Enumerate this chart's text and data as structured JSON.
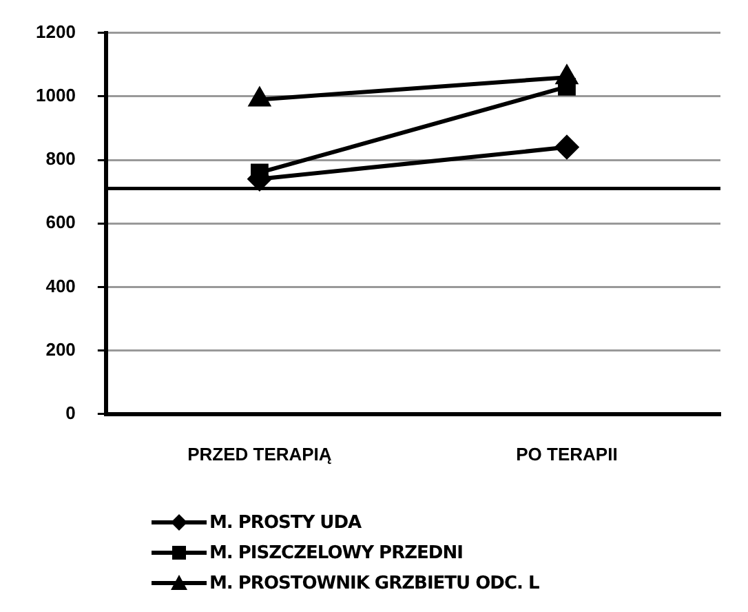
{
  "chart_data": {
    "type": "line",
    "categories": [
      "PRZED TERAPIĄ",
      "PO TERAPII"
    ],
    "series": [
      {
        "name": "M. PROSTY UDA",
        "color": "#000000",
        "marker": "diamond",
        "values": [
          740,
          840
        ]
      },
      {
        "name": "M. PISZCZELOWY PRZEDNI",
        "color": "#000000",
        "marker": "square",
        "values": [
          760,
          1030
        ]
      },
      {
        "name": "M. PROSTOWNIK GRZBIETU ODC. L",
        "color": "#000000",
        "marker": "triangle",
        "values": [
          990,
          1060
        ]
      }
    ],
    "ylim": [
      0,
      1200
    ],
    "yticks": [
      0,
      200,
      400,
      600,
      800,
      1000,
      1200
    ],
    "grid": "y",
    "legend": "bottom",
    "ref_lines": [
      {
        "axis": "y",
        "value": 710,
        "color": "#000000"
      }
    ]
  }
}
